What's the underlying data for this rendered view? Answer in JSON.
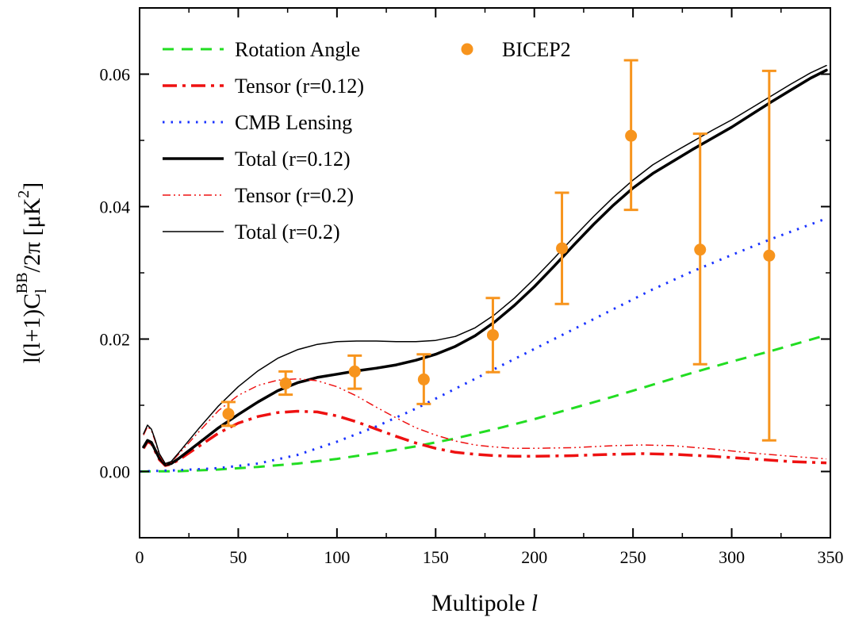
{
  "chart_data": {
    "type": "line",
    "xlabel": "Multipole ",
    "xlabel_italic": "l",
    "ylabel_parts": {
      "a": "l(l+1)C",
      "sub": "l",
      "sup": "BB",
      "b": "/2π [μK",
      "sup2": "2",
      "c": "]"
    },
    "xlim": [
      0,
      350
    ],
    "ylim": [
      -0.01,
      0.07
    ],
    "x_ticks": [
      0,
      50,
      100,
      150,
      200,
      250,
      300,
      350
    ],
    "x_tick_labels": [
      "0",
      "50",
      "100",
      "150",
      "200",
      "250",
      "300",
      "350"
    ],
    "y_ticks": [
      0,
      0.02,
      0.04,
      0.06
    ],
    "y_tick_labels": [
      "0.00",
      "0.02",
      "0.04",
      "0.06"
    ],
    "grid": false,
    "legend_position": "top-left",
    "series": [
      {
        "name": "Rotation Angle",
        "color": "#22dd22",
        "style": "dashed",
        "points": [
          [
            0,
            0
          ],
          [
            20,
            5e-05
          ],
          [
            40,
            0.0003
          ],
          [
            60,
            0.0007
          ],
          [
            80,
            0.0012
          ],
          [
            100,
            0.0019
          ],
          [
            120,
            0.0028
          ],
          [
            140,
            0.0038
          ],
          [
            160,
            0.005
          ],
          [
            180,
            0.0064
          ],
          [
            200,
            0.0079
          ],
          [
            220,
            0.0096
          ],
          [
            240,
            0.0113
          ],
          [
            260,
            0.0131
          ],
          [
            280,
            0.0149
          ],
          [
            300,
            0.0166
          ],
          [
            320,
            0.0182
          ],
          [
            348,
            0.0206
          ]
        ]
      },
      {
        "name": "Tensor (r=0.12)",
        "color": "#ee1111",
        "style": "dashdot",
        "points": [
          [
            2,
            0.0035
          ],
          [
            4,
            0.0045
          ],
          [
            6,
            0.0042
          ],
          [
            8,
            0.003
          ],
          [
            10,
            0.0018
          ],
          [
            13,
            0.0009
          ],
          [
            16,
            0.0011
          ],
          [
            20,
            0.0018
          ],
          [
            30,
            0.0038
          ],
          [
            40,
            0.0058
          ],
          [
            50,
            0.0073
          ],
          [
            60,
            0.0083
          ],
          [
            70,
            0.0089
          ],
          [
            80,
            0.0091
          ],
          [
            90,
            0.009
          ],
          [
            100,
            0.0084
          ],
          [
            110,
            0.0075
          ],
          [
            120,
            0.0064
          ],
          [
            130,
            0.0053
          ],
          [
            140,
            0.0043
          ],
          [
            150,
            0.0035
          ],
          [
            160,
            0.0029
          ],
          [
            170,
            0.0026
          ],
          [
            180,
            0.0024
          ],
          [
            190,
            0.0023
          ],
          [
            200,
            0.0023
          ],
          [
            220,
            0.0024
          ],
          [
            240,
            0.0026
          ],
          [
            255,
            0.0027
          ],
          [
            270,
            0.0026
          ],
          [
            290,
            0.0023
          ],
          [
            310,
            0.0019
          ],
          [
            330,
            0.0015
          ],
          [
            348,
            0.0013
          ]
        ]
      },
      {
        "name": "CMB Lensing",
        "color": "#1a33ff",
        "style": "dotted",
        "points": [
          [
            0,
            0
          ],
          [
            20,
            0.0002
          ],
          [
            40,
            0.0005
          ],
          [
            60,
            0.0012
          ],
          [
            80,
            0.0025
          ],
          [
            100,
            0.0045
          ],
          [
            120,
            0.0068
          ],
          [
            140,
            0.0095
          ],
          [
            160,
            0.0125
          ],
          [
            180,
            0.0155
          ],
          [
            200,
            0.0185
          ],
          [
            220,
            0.0215
          ],
          [
            240,
            0.0245
          ],
          [
            260,
            0.0275
          ],
          [
            280,
            0.0302
          ],
          [
            300,
            0.0327
          ],
          [
            320,
            0.0351
          ],
          [
            348,
            0.0382
          ]
        ]
      },
      {
        "name": "Total (r=0.12)",
        "color": "#000000",
        "style": "solid-thick",
        "points": [
          [
            2,
            0.0037
          ],
          [
            4,
            0.0047
          ],
          [
            6,
            0.0044
          ],
          [
            8,
            0.0032
          ],
          [
            10,
            0.002
          ],
          [
            13,
            0.001
          ],
          [
            16,
            0.0012
          ],
          [
            20,
            0.002
          ],
          [
            30,
            0.0043
          ],
          [
            40,
            0.0066
          ],
          [
            50,
            0.0086
          ],
          [
            60,
            0.0105
          ],
          [
            70,
            0.0122
          ],
          [
            80,
            0.0134
          ],
          [
            90,
            0.0142
          ],
          [
            100,
            0.0147
          ],
          [
            110,
            0.0152
          ],
          [
            120,
            0.0156
          ],
          [
            130,
            0.0161
          ],
          [
            140,
            0.0168
          ],
          [
            150,
            0.0177
          ],
          [
            160,
            0.0189
          ],
          [
            170,
            0.0205
          ],
          [
            180,
            0.0226
          ],
          [
            190,
            0.0251
          ],
          [
            200,
            0.0279
          ],
          [
            210,
            0.031
          ],
          [
            220,
            0.0342
          ],
          [
            230,
            0.0373
          ],
          [
            240,
            0.0402
          ],
          [
            250,
            0.0428
          ],
          [
            260,
            0.045
          ],
          [
            270,
            0.0468
          ],
          [
            280,
            0.0486
          ],
          [
            290,
            0.0503
          ],
          [
            300,
            0.052
          ],
          [
            310,
            0.0539
          ],
          [
            320,
            0.0558
          ],
          [
            330,
            0.0576
          ],
          [
            340,
            0.0594
          ],
          [
            348,
            0.0606
          ]
        ]
      },
      {
        "name": "Tensor (r=0.2)",
        "color": "#ee1111",
        "style": "dashdotdot",
        "points": [
          [
            2,
            0.0055
          ],
          [
            4,
            0.0068
          ],
          [
            6,
            0.0062
          ],
          [
            8,
            0.0045
          ],
          [
            10,
            0.0025
          ],
          [
            13,
            0.0011
          ],
          [
            16,
            0.0014
          ],
          [
            20,
            0.0027
          ],
          [
            30,
            0.006
          ],
          [
            40,
            0.0092
          ],
          [
            50,
            0.0115
          ],
          [
            60,
            0.013
          ],
          [
            70,
            0.0138
          ],
          [
            80,
            0.014
          ],
          [
            90,
            0.0137
          ],
          [
            100,
            0.0128
          ],
          [
            110,
            0.0114
          ],
          [
            120,
            0.0097
          ],
          [
            130,
            0.0081
          ],
          [
            140,
            0.0066
          ],
          [
            150,
            0.0055
          ],
          [
            160,
            0.0046
          ],
          [
            170,
            0.004
          ],
          [
            180,
            0.0037
          ],
          [
            190,
            0.0035
          ],
          [
            200,
            0.0035
          ],
          [
            220,
            0.0036
          ],
          [
            240,
            0.0039
          ],
          [
            255,
            0.004
          ],
          [
            270,
            0.0039
          ],
          [
            290,
            0.0034
          ],
          [
            310,
            0.0028
          ],
          [
            330,
            0.0023
          ],
          [
            348,
            0.0019
          ]
        ]
      },
      {
        "name": "Total (r=0.2)",
        "color": "#000000",
        "style": "solid-thin",
        "points": [
          [
            2,
            0.0057
          ],
          [
            4,
            0.007
          ],
          [
            6,
            0.0064
          ],
          [
            8,
            0.0047
          ],
          [
            10,
            0.0027
          ],
          [
            13,
            0.0012
          ],
          [
            16,
            0.0015
          ],
          [
            20,
            0.0029
          ],
          [
            30,
            0.0065
          ],
          [
            40,
            0.0099
          ],
          [
            50,
            0.0128
          ],
          [
            60,
            0.0152
          ],
          [
            70,
            0.0171
          ],
          [
            80,
            0.0184
          ],
          [
            90,
            0.0192
          ],
          [
            100,
            0.0196
          ],
          [
            110,
            0.0197
          ],
          [
            120,
            0.0197
          ],
          [
            130,
            0.0196
          ],
          [
            140,
            0.0196
          ],
          [
            150,
            0.0198
          ],
          [
            160,
            0.0204
          ],
          [
            170,
            0.0217
          ],
          [
            180,
            0.0237
          ],
          [
            190,
            0.0262
          ],
          [
            200,
            0.0291
          ],
          [
            210,
            0.0322
          ],
          [
            220,
            0.0354
          ],
          [
            230,
            0.0385
          ],
          [
            240,
            0.0414
          ],
          [
            250,
            0.044
          ],
          [
            260,
            0.0463
          ],
          [
            270,
            0.0481
          ],
          [
            280,
            0.0498
          ],
          [
            290,
            0.0515
          ],
          [
            300,
            0.0531
          ],
          [
            310,
            0.0549
          ],
          [
            320,
            0.0567
          ],
          [
            330,
            0.0585
          ],
          [
            340,
            0.0602
          ],
          [
            348,
            0.0613
          ]
        ]
      }
    ],
    "data_points": {
      "name": "BICEP2",
      "color": "#f7941d",
      "points": [
        {
          "x": 45,
          "y": 0.0087,
          "err_low": 0.0069,
          "err_high": 0.0105
        },
        {
          "x": 74,
          "y": 0.0133,
          "err_low": 0.0116,
          "err_high": 0.0151
        },
        {
          "x": 109,
          "y": 0.0151,
          "err_low": 0.0125,
          "err_high": 0.0175
        },
        {
          "x": 144,
          "y": 0.0139,
          "err_low": 0.0102,
          "err_high": 0.0177
        },
        {
          "x": 179,
          "y": 0.0206,
          "err_low": 0.015,
          "err_high": 0.0262
        },
        {
          "x": 214,
          "y": 0.0337,
          "err_low": 0.0253,
          "err_high": 0.0421
        },
        {
          "x": 249,
          "y": 0.0507,
          "err_low": 0.0395,
          "err_high": 0.0621
        },
        {
          "x": 284,
          "y": 0.0335,
          "err_low": 0.0162,
          "err_high": 0.051
        },
        {
          "x": 319,
          "y": 0.0326,
          "err_low": 0.0047,
          "err_high": 0.0605
        }
      ]
    },
    "legend_left": [
      "Rotation Angle",
      "Tensor (r=0.12)",
      "CMB Lensing",
      "Total (r=0.12)",
      "Tensor (r=0.2)",
      "Total (r=0.2)"
    ],
    "legend_right": [
      "BICEP2"
    ]
  }
}
